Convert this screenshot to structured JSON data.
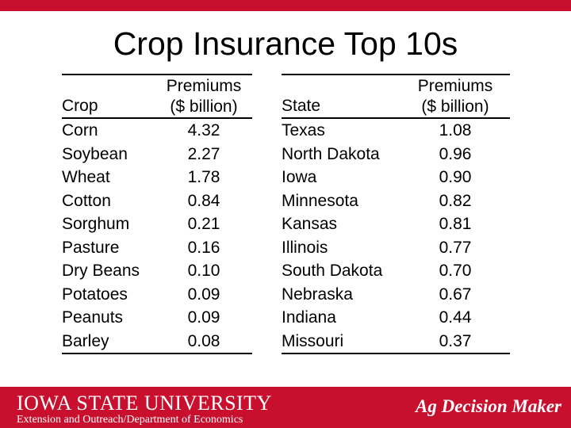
{
  "title": "Crop Insurance Top 10s",
  "crop_table": {
    "header_label": "Crop",
    "header_value_line1": "Premiums",
    "header_value_line2": "($ billion)",
    "rows": [
      {
        "label": "Corn",
        "value": "4.32"
      },
      {
        "label": "Soybean",
        "value": "2.27"
      },
      {
        "label": "Wheat",
        "value": "1.78"
      },
      {
        "label": "Cotton",
        "value": "0.84"
      },
      {
        "label": "Sorghum",
        "value": "0.21"
      },
      {
        "label": "Pasture",
        "value": "0.16"
      },
      {
        "label": "Dry Beans",
        "value": "0.10"
      },
      {
        "label": "Potatoes",
        "value": "0.09"
      },
      {
        "label": "Peanuts",
        "value": "0.09"
      },
      {
        "label": "Barley",
        "value": "0.08"
      }
    ]
  },
  "state_table": {
    "header_label": "State",
    "header_value_line1": "Premiums",
    "header_value_line2": "($ billion)",
    "rows": [
      {
        "label": "Texas",
        "value": "1.08"
      },
      {
        "label": "North Dakota",
        "value": "0.96"
      },
      {
        "label": "Iowa",
        "value": "0.90"
      },
      {
        "label": "Minnesota",
        "value": "0.82"
      },
      {
        "label": "Kansas",
        "value": "0.81"
      },
      {
        "label": "Illinois",
        "value": "0.77"
      },
      {
        "label": "South Dakota",
        "value": "0.70"
      },
      {
        "label": "Nebraska",
        "value": "0.67"
      },
      {
        "label": "Indiana",
        "value": "0.44"
      },
      {
        "label": "Missouri",
        "value": "0.37"
      }
    ]
  },
  "footer": {
    "logo_text": "IOWA STATE UNIVERSITY",
    "subtitle": "Extension and Outreach/Department of Economics",
    "brand": "Ag Decision Maker"
  },
  "colors": {
    "accent": "#c8102e",
    "text": "#000000",
    "background": "#ffffff"
  }
}
